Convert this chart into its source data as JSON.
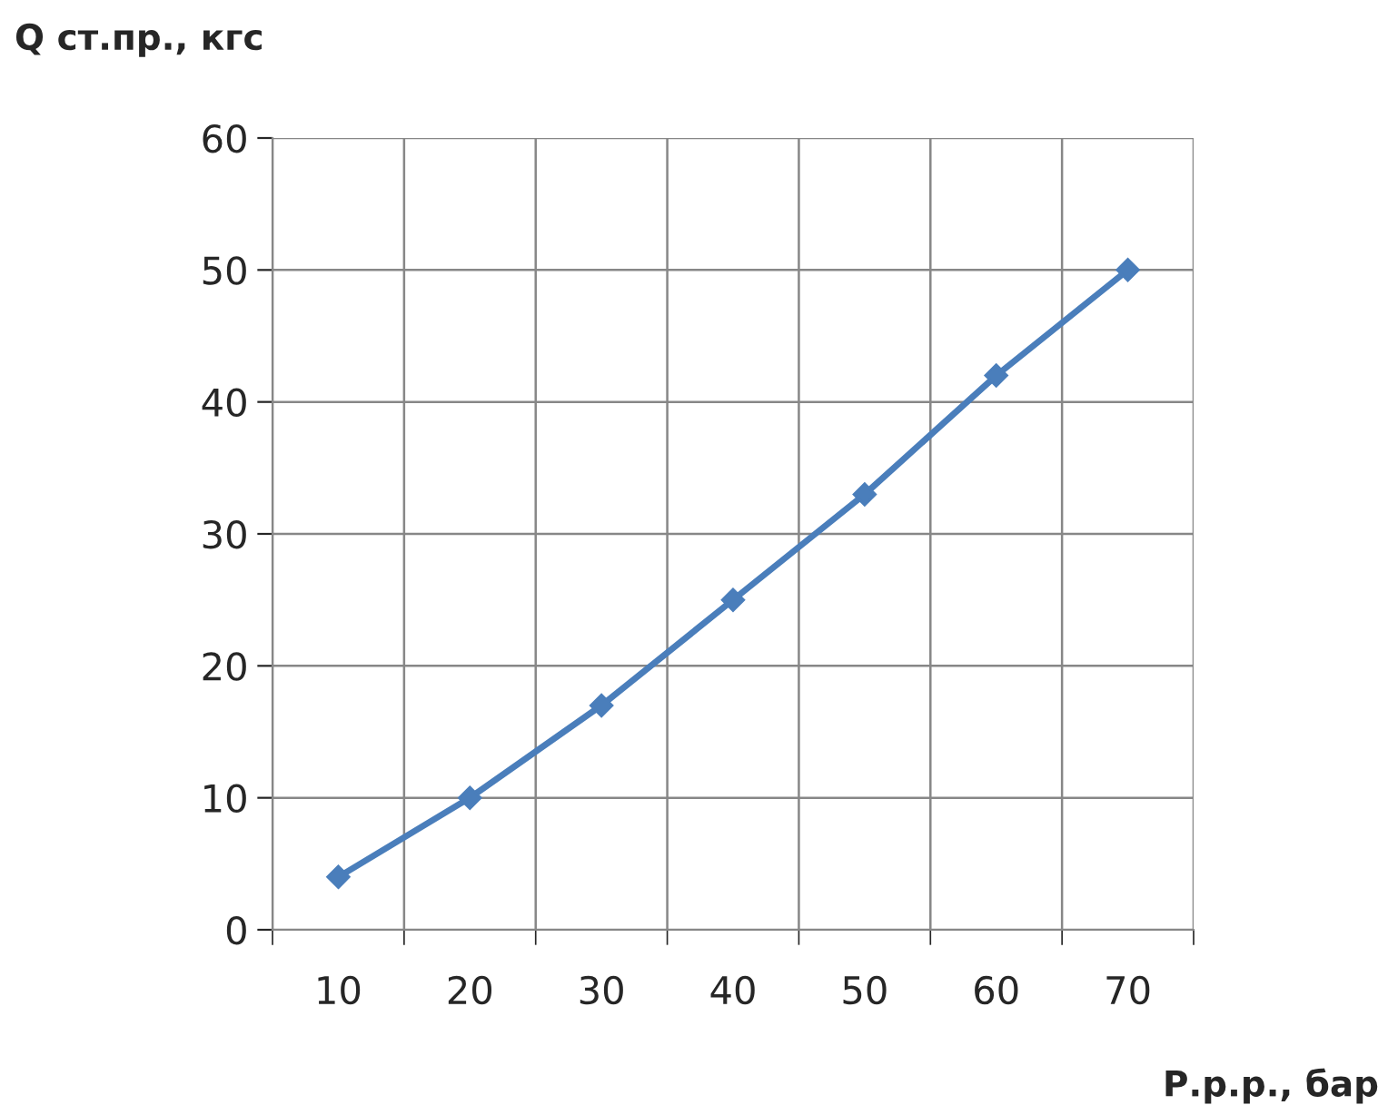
{
  "chart_data": {
    "type": "line",
    "xlabel": "Р.р.р., бар",
    "ylabel": "Q ст.пр., кгс",
    "categories": [
      "10",
      "20",
      "30",
      "40",
      "50",
      "60",
      "70"
    ],
    "series": [
      {
        "color": "#4a7ebb",
        "values": [
          4,
          10,
          17,
          25,
          33,
          42,
          50
        ]
      }
    ],
    "ylim": [
      0,
      60
    ],
    "yticks": [
      0,
      10,
      20,
      30,
      40,
      50,
      60
    ],
    "grid": true,
    "marker": "diamond",
    "line_style": "solid"
  }
}
